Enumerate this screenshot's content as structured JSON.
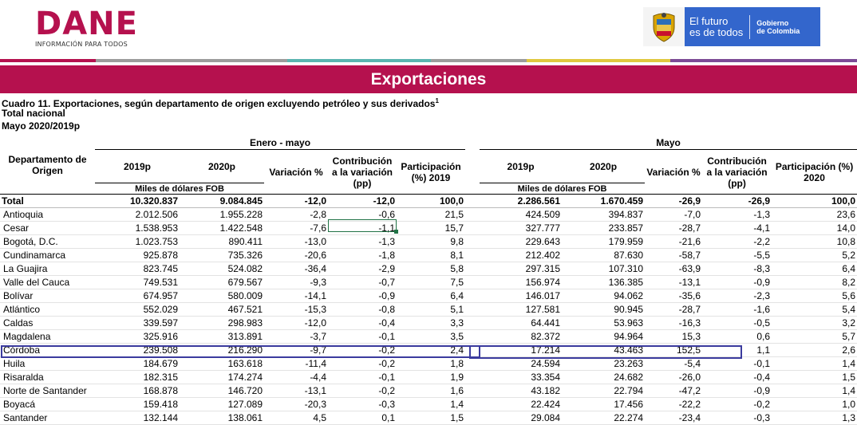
{
  "header": {
    "logo_text": "DANE",
    "logo_subtitle": "INFORMACIÓN PARA TODOS",
    "gov_line1a": "El futuro",
    "gov_line1b": "es de todos",
    "gov_line2a": "Gobierno",
    "gov_line2b": "de Colombia"
  },
  "colors": {
    "brand": "#b5114e",
    "gov_blue": "#3366cc",
    "highlight": "#3b3b9e",
    "selection": "#217346"
  },
  "banner_title": "Exportaciones",
  "caption": {
    "line1": "Cuadro 11. Exportaciones, según departamento de origen excluyendo petróleo y sus derivados",
    "sup": "1",
    "line2": "Total nacional",
    "line3": "Mayo 2020/2019p"
  },
  "table": {
    "col_dept": "Departamento de Origen",
    "group1": "Enero - mayo",
    "group2": "Mayo",
    "y2019": "2019p",
    "y2020": "2020p",
    "variacion": "Variación %",
    "contrib": "Contribución a la variación (pp)",
    "part2019": "Participación (%) 2019",
    "part2020": "Participación (%) 2020",
    "unit": "Miles de dólares FOB",
    "rows": [
      {
        "name": "Total",
        "v": [
          "10.320.837",
          "9.084.845",
          "-12,0",
          "-12,0",
          "100,0",
          "2.286.561",
          "1.670.459",
          "-26,9",
          "-26,9",
          "100,0"
        ]
      },
      {
        "name": "Antioquia",
        "v": [
          "2.012.506",
          "1.955.228",
          "-2,8",
          "-0,6",
          "21,5",
          "424.509",
          "394.837",
          "-7,0",
          "-1,3",
          "23,6"
        ]
      },
      {
        "name": "Cesar",
        "v": [
          "1.538.953",
          "1.422.548",
          "-7,6",
          "-1,1",
          "15,7",
          "327.777",
          "233.857",
          "-28,7",
          "-4,1",
          "14,0"
        ]
      },
      {
        "name": "Bogotá, D.C.",
        "v": [
          "1.023.753",
          "890.411",
          "-13,0",
          "-1,3",
          "9,8",
          "229.643",
          "179.959",
          "-21,6",
          "-2,2",
          "10,8"
        ]
      },
      {
        "name": "Cundinamarca",
        "v": [
          "925.878",
          "735.326",
          "-20,6",
          "-1,8",
          "8,1",
          "212.402",
          "87.630",
          "-58,7",
          "-5,5",
          "5,2"
        ]
      },
      {
        "name": "La Guajira",
        "v": [
          "823.745",
          "524.082",
          "-36,4",
          "-2,9",
          "5,8",
          "297.315",
          "107.310",
          "-63,9",
          "-8,3",
          "6,4"
        ]
      },
      {
        "name": "Valle del Cauca",
        "v": [
          "749.531",
          "679.567",
          "-9,3",
          "-0,7",
          "7,5",
          "156.974",
          "136.385",
          "-13,1",
          "-0,9",
          "8,2"
        ]
      },
      {
        "name": "Bolívar",
        "v": [
          "674.957",
          "580.009",
          "-14,1",
          "-0,9",
          "6,4",
          "146.017",
          "94.062",
          "-35,6",
          "-2,3",
          "5,6"
        ]
      },
      {
        "name": "Atlántico",
        "v": [
          "552.029",
          "467.521",
          "-15,3",
          "-0,8",
          "5,1",
          "127.581",
          "90.945",
          "-28,7",
          "-1,6",
          "5,4"
        ]
      },
      {
        "name": "Caldas",
        "v": [
          "339.597",
          "298.983",
          "-12,0",
          "-0,4",
          "3,3",
          "64.441",
          "53.963",
          "-16,3",
          "-0,5",
          "3,2"
        ]
      },
      {
        "name": "Magdalena",
        "v": [
          "325.916",
          "313.891",
          "-3,7",
          "-0,1",
          "3,5",
          "82.372",
          "94.964",
          "15,3",
          "0,6",
          "5,7"
        ]
      },
      {
        "name": "Córdoba",
        "v": [
          "239.508",
          "216.290",
          "-9,7",
          "-0,2",
          "2,4",
          "17.214",
          "43.463",
          "152,5",
          "1,1",
          "2,6"
        ]
      },
      {
        "name": "Huila",
        "v": [
          "184.679",
          "163.618",
          "-11,4",
          "-0,2",
          "1,8",
          "24.594",
          "23.263",
          "-5,4",
          "-0,1",
          "1,4"
        ]
      },
      {
        "name": "Risaralda",
        "v": [
          "182.315",
          "174.274",
          "-4,4",
          "-0,1",
          "1,9",
          "33.354",
          "24.682",
          "-26,0",
          "-0,4",
          "1,5"
        ]
      },
      {
        "name": "Norte de Santander",
        "v": [
          "168.878",
          "146.720",
          "-13,1",
          "-0,2",
          "1,6",
          "43.182",
          "22.794",
          "-47,2",
          "-0,9",
          "1,4"
        ]
      },
      {
        "name": "Boyacá",
        "v": [
          "159.418",
          "127.089",
          "-20,3",
          "-0,3",
          "1,4",
          "22.424",
          "17.456",
          "-22,2",
          "-0,2",
          "1,0"
        ]
      },
      {
        "name": "Santander",
        "v": [
          "132.144",
          "138.061",
          "4,5",
          "0,1",
          "1,5",
          "29.084",
          "22.274",
          "-23,4",
          "-0,3",
          "1,3"
        ]
      }
    ]
  }
}
